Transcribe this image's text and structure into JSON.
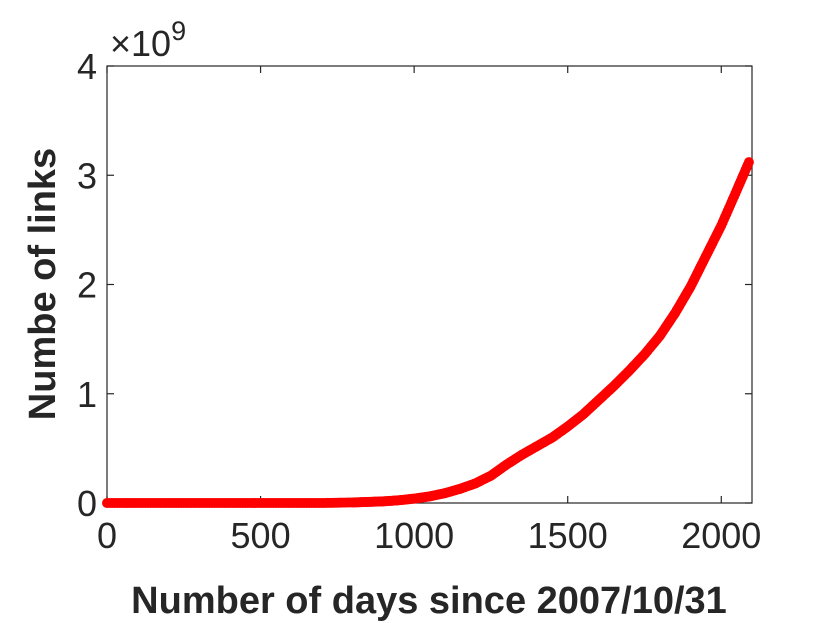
{
  "chart_data": {
    "type": "scatter",
    "xlabel": "Number of days since 2007/10/31",
    "ylabel": "Numbe of links",
    "y_multiplier": {
      "base": "×10",
      "exponent": "9"
    },
    "xlim": [
      0,
      2100
    ],
    "ylim": [
      0,
      4
    ],
    "x_ticks": [
      0,
      500,
      1000,
      1500,
      2000
    ],
    "x_tick_labels": [
      "0",
      "500",
      "1000",
      "1500",
      "2000"
    ],
    "y_ticks": [
      0,
      1,
      2,
      3,
      4
    ],
    "y_tick_labels": [
      "0",
      "1",
      "2",
      "3",
      "4"
    ],
    "grid": false,
    "marker_color": "#ff0000",
    "axis_color": "#262626",
    "series": [
      {
        "x": [
          0,
          100,
          200,
          300,
          400,
          500,
          600,
          700,
          800,
          850,
          900,
          950,
          1000,
          1050,
          1100,
          1150,
          1200,
          1250,
          1300,
          1350,
          1400,
          1450,
          1500,
          1550,
          1600,
          1650,
          1700,
          1750,
          1800,
          1850,
          1900,
          1950,
          2000,
          2050,
          2090
        ],
        "y": [
          0,
          0,
          0,
          0,
          0,
          0,
          0,
          0,
          0.005,
          0.01,
          0.015,
          0.025,
          0.04,
          0.06,
          0.09,
          0.13,
          0.18,
          0.25,
          0.35,
          0.44,
          0.52,
          0.6,
          0.7,
          0.81,
          0.94,
          1.07,
          1.21,
          1.36,
          1.53,
          1.74,
          1.98,
          2.26,
          2.54,
          2.86,
          3.12
        ]
      }
    ]
  }
}
